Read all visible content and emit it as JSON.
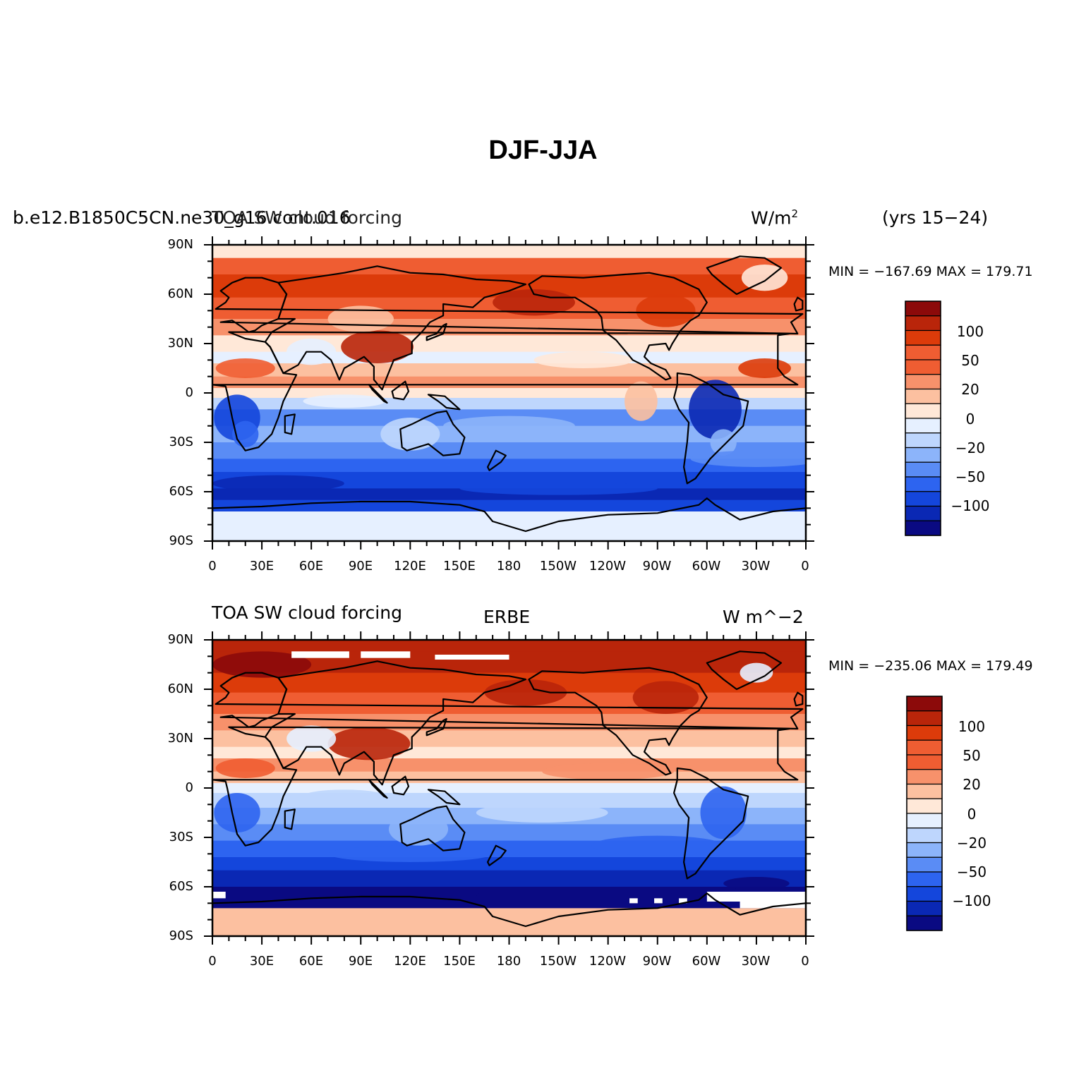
{
  "title": "DJF-JJA",
  "colors": [
    "#0a0a82",
    "#0a28b4",
    "#1446dc",
    "#2d64f0",
    "#5a8cf5",
    "#8cb4fa",
    "#bed6fd",
    "#e6f0ff",
    "#ffe8d8",
    "#fcc0a0",
    "#f7916b",
    "#ef5d32",
    "#dc3b0a",
    "#b9250a",
    "#8c0a0a"
  ],
  "chart_data": [
    {
      "type": "heatmap",
      "left_label": "b.e12.B1850C5CN.ne30_g16.cont.016",
      "center_label": "TOA SW cloud forcing",
      "right_label": "W/m",
      "right_label_sup": "2",
      "years_label": "(yrs 15−24)",
      "min_max_label": "MIN = −167.69  MAX = 179.71",
      "x_ticks": [
        "0",
        "30E",
        "60E",
        "90E",
        "120E",
        "150E",
        "180",
        "150W",
        "120W",
        "90W",
        "60W",
        "30W",
        "0"
      ],
      "y_ticks": [
        "90N",
        "60N",
        "30N",
        "0",
        "30S",
        "60S",
        "90S"
      ],
      "lon_range": [
        0,
        360
      ],
      "lat_range": [
        -90,
        90
      ],
      "colorbar_labels": [
        "100",
        "50",
        "20",
        "0",
        "−20",
        "−50",
        "−100"
      ]
    },
    {
      "type": "heatmap",
      "left_label": "TOA SW cloud forcing",
      "center_label": "ERBE",
      "right_label": "W m^−2",
      "min_max_label": "MIN = −235.06  MAX = 179.49",
      "x_ticks": [
        "0",
        "30E",
        "60E",
        "90E",
        "120E",
        "150E",
        "180",
        "150W",
        "120W",
        "90W",
        "60W",
        "30W",
        "0"
      ],
      "y_ticks": [
        "90N",
        "60N",
        "30N",
        "0",
        "30S",
        "60S",
        "90S"
      ],
      "lon_range": [
        0,
        360
      ],
      "lat_range": [
        -90,
        90
      ],
      "colorbar_labels": [
        "100",
        "50",
        "20",
        "0",
        "−20",
        "−50",
        "−100"
      ]
    }
  ]
}
